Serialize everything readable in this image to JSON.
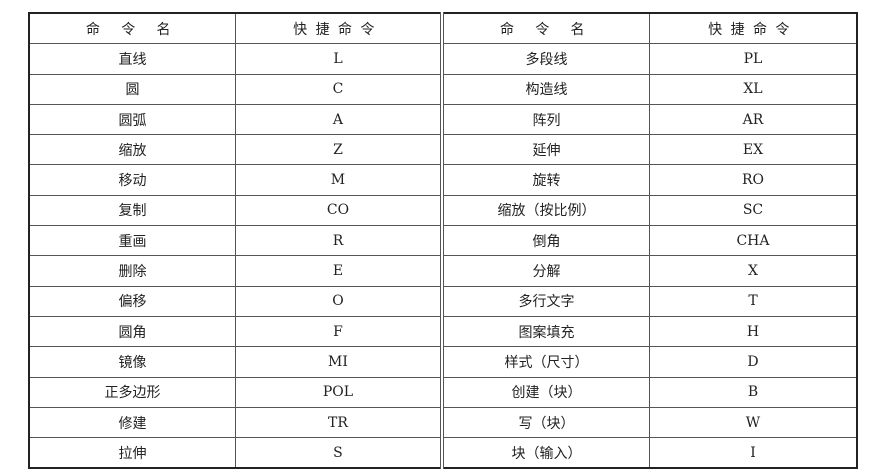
{
  "headers": [
    "命 令 名",
    "快捷命令",
    "命 令 名",
    "快捷命令"
  ],
  "rows": [
    [
      "直线",
      "L",
      "多段线",
      "PL"
    ],
    [
      "圆",
      "C",
      "构造线",
      "XL"
    ],
    [
      "圆弧",
      "A",
      "阵列",
      "AR"
    ],
    [
      "缩放",
      "Z",
      "延伸",
      "EX"
    ],
    [
      "移动",
      "M",
      "旋转",
      "RO"
    ],
    [
      "复制",
      "CO",
      "缩放（按比例）",
      "SC"
    ],
    [
      "重画",
      "R",
      "倒角",
      "CHA"
    ],
    [
      "删除",
      "E",
      "分解",
      "X"
    ],
    [
      "偏移",
      "O",
      "多行文字",
      "T"
    ],
    [
      "圆角",
      "F",
      "图案填充",
      "H"
    ],
    [
      "镜像",
      "MI",
      "样式（尺寸）",
      "D"
    ],
    [
      "正多边形",
      "POL",
      "创建（块）",
      "B"
    ],
    [
      "修建",
      "TR",
      "写（块）",
      "W"
    ],
    [
      "拉伸",
      "S",
      "块（输入）",
      "I"
    ]
  ]
}
